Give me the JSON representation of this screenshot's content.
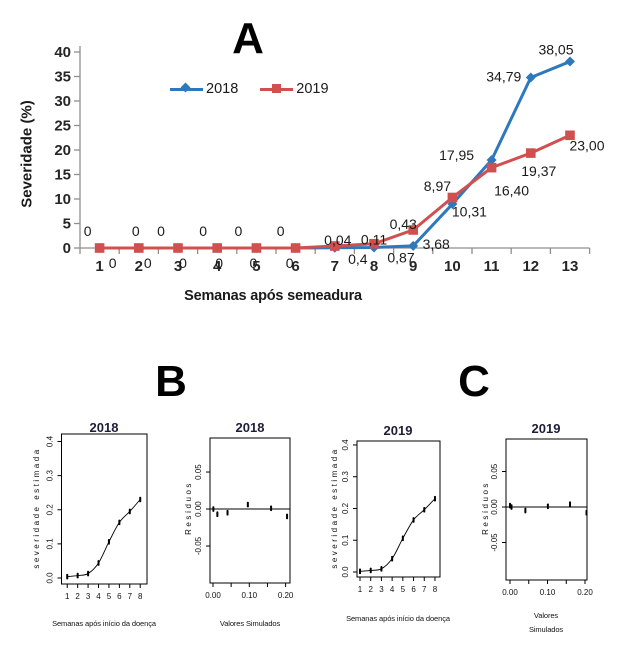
{
  "figure": {
    "background": "#ffffff"
  },
  "panels": {
    "A": "A",
    "B": "B",
    "C": "C"
  },
  "chart_data": [
    {
      "panel": "A",
      "type": "line",
      "title": "A",
      "xlabel": "Semanas após semeadura",
      "ylabel": "Severidade (%)",
      "x": [
        1,
        2,
        3,
        4,
        5,
        6,
        7,
        8,
        9,
        10,
        11,
        12,
        13
      ],
      "ylim": [
        0,
        40
      ],
      "yticks": [
        0,
        5,
        10,
        15,
        20,
        25,
        30,
        35,
        40
      ],
      "legend_position": "top-center",
      "grid": false,
      "axis_color": "#8f8f8f",
      "text_color": "#262626",
      "series": [
        {
          "name": "2018",
          "marker": "diamond",
          "color": "#2e79be",
          "values": [
            0,
            0,
            0,
            0,
            0,
            0,
            0.04,
            0.11,
            0.43,
            8.97,
            17.95,
            34.79,
            38.05
          ],
          "point_labels": [
            "0",
            "0",
            "0",
            "0",
            "0",
            "0",
            "0,04",
            "0,11",
            "0,43",
            "8,97",
            "17,95",
            "34,79",
            "38,05"
          ]
        },
        {
          "name": "2019",
          "marker": "square",
          "color": "#cf504e",
          "values": [
            0,
            0,
            0,
            0,
            0,
            0,
            0.4,
            0.87,
            3.68,
            10.31,
            16.4,
            19.37,
            23
          ],
          "point_labels": [
            "0",
            "0",
            "0",
            "0",
            "0",
            "0",
            "0,4",
            "0,87",
            "3,68",
            "10,31",
            "16,40",
            "19,37",
            "23,00"
          ]
        }
      ]
    },
    {
      "panel": "B",
      "type": "scatter-line",
      "title": "2018",
      "xlabel": "Semanas após início da doença",
      "ylabel": "severidade estimada",
      "x": [
        1,
        2,
        3,
        4,
        5,
        6,
        7,
        8
      ],
      "y": [
        0.004,
        0.007,
        0.013,
        0.044,
        0.106,
        0.163,
        0.195,
        0.23
      ],
      "xticks": [
        1,
        2,
        3,
        4,
        5,
        6,
        7,
        8
      ],
      "xtick_labels": [
        "1",
        "2",
        "3",
        "4",
        "5",
        "6",
        "7",
        "8"
      ],
      "yticks": [
        0,
        0.1,
        0.2,
        0.3,
        0.4
      ],
      "ytick_labels": [
        "0.0",
        "0.1",
        "0.2",
        "0.3",
        "0.4"
      ],
      "ylim": [
        0,
        0.4
      ]
    },
    {
      "panel": "B",
      "type": "scatter",
      "title": "2018",
      "xlabel": "Valores Simulados",
      "ylabel": "Resíduos",
      "x": [
        0.001,
        0.012,
        0.04,
        0.096,
        0.16,
        0.204
      ],
      "y": [
        0,
        -0.007,
        -0.005,
        0.006,
        0.001,
        -0.01
      ],
      "xticks": [
        0,
        0.05,
        0.1,
        0.15,
        0.2
      ],
      "xtick_labels": [
        "0.00",
        "",
        "0.10",
        "",
        "0.20"
      ],
      "yticks": [
        -0.05,
        0,
        0.05
      ],
      "ytick_labels": [
        "-0.05",
        "0.00",
        "0.05"
      ],
      "hline": 0
    },
    {
      "panel": "C",
      "type": "scatter-line",
      "title": "2019",
      "xlabel": "Semanas após início da doença",
      "ylabel": "severidade estimada",
      "x": [
        1,
        2,
        3,
        4,
        5,
        6,
        7,
        8
      ],
      "y": [
        0.002,
        0.005,
        0.01,
        0.042,
        0.106,
        0.164,
        0.196,
        0.231
      ],
      "xticks": [
        1,
        2,
        3,
        4,
        5,
        6,
        7,
        8
      ],
      "xtick_labels": [
        "1",
        "2",
        "3",
        "4",
        "5",
        "6",
        "7",
        "8"
      ],
      "yticks": [
        0,
        0.1,
        0.2,
        0.3,
        0.4
      ],
      "ytick_labels": [
        "0.0",
        "0.1",
        "0.2",
        "0.3",
        "0.4"
      ],
      "ylim": [
        0,
        0.4
      ]
    },
    {
      "panel": "C",
      "type": "scatter",
      "title": "2019",
      "xlabel": "Valores Simulados",
      "xlabel_lines": [
        "Valores",
        "Simulados"
      ],
      "ylabel": "Resíduos",
      "x": [
        0,
        0.004,
        0.041,
        0.101,
        0.16,
        0.204
      ],
      "y": [
        0.002,
        0,
        -0.005,
        0.001,
        0.004,
        -0.008
      ],
      "xticks": [
        0,
        0.05,
        0.1,
        0.15,
        0.2
      ],
      "xtick_labels": [
        "0.00",
        "",
        "0.10",
        "",
        "0.20"
      ],
      "yticks": [
        -0.05,
        0,
        0.05
      ],
      "ytick_labels": [
        "-0.05",
        "0.00",
        "0.05"
      ],
      "hline": 0
    }
  ]
}
